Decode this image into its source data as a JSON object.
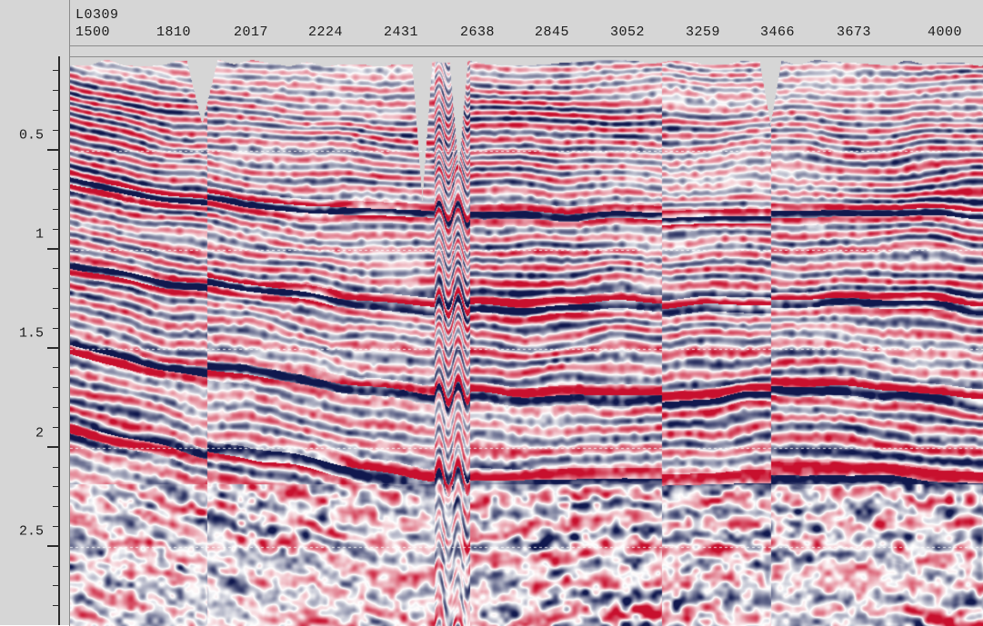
{
  "section": {
    "line_name": "L0309"
  },
  "trace_axis": {
    "labels": [
      "1500",
      "1810",
      "2017",
      "2224",
      "2431",
      "2638",
      "2845",
      "3052",
      "3259",
      "3466",
      "3673",
      "4000"
    ]
  },
  "time_axis": {
    "labels": [
      "0.5",
      "1",
      "1.5",
      "2",
      "2.5"
    ],
    "values": [
      0.5,
      1.0,
      1.5,
      2.0,
      2.5
    ],
    "range": [
      0.03,
      2.9
    ]
  },
  "colors": {
    "positive_amplitude": "#c8102e",
    "negative_amplitude": "#10184e",
    "background": "#ffffff",
    "no_data": "#d6d6d6",
    "axis_frame": "#d6d6d6"
  }
}
